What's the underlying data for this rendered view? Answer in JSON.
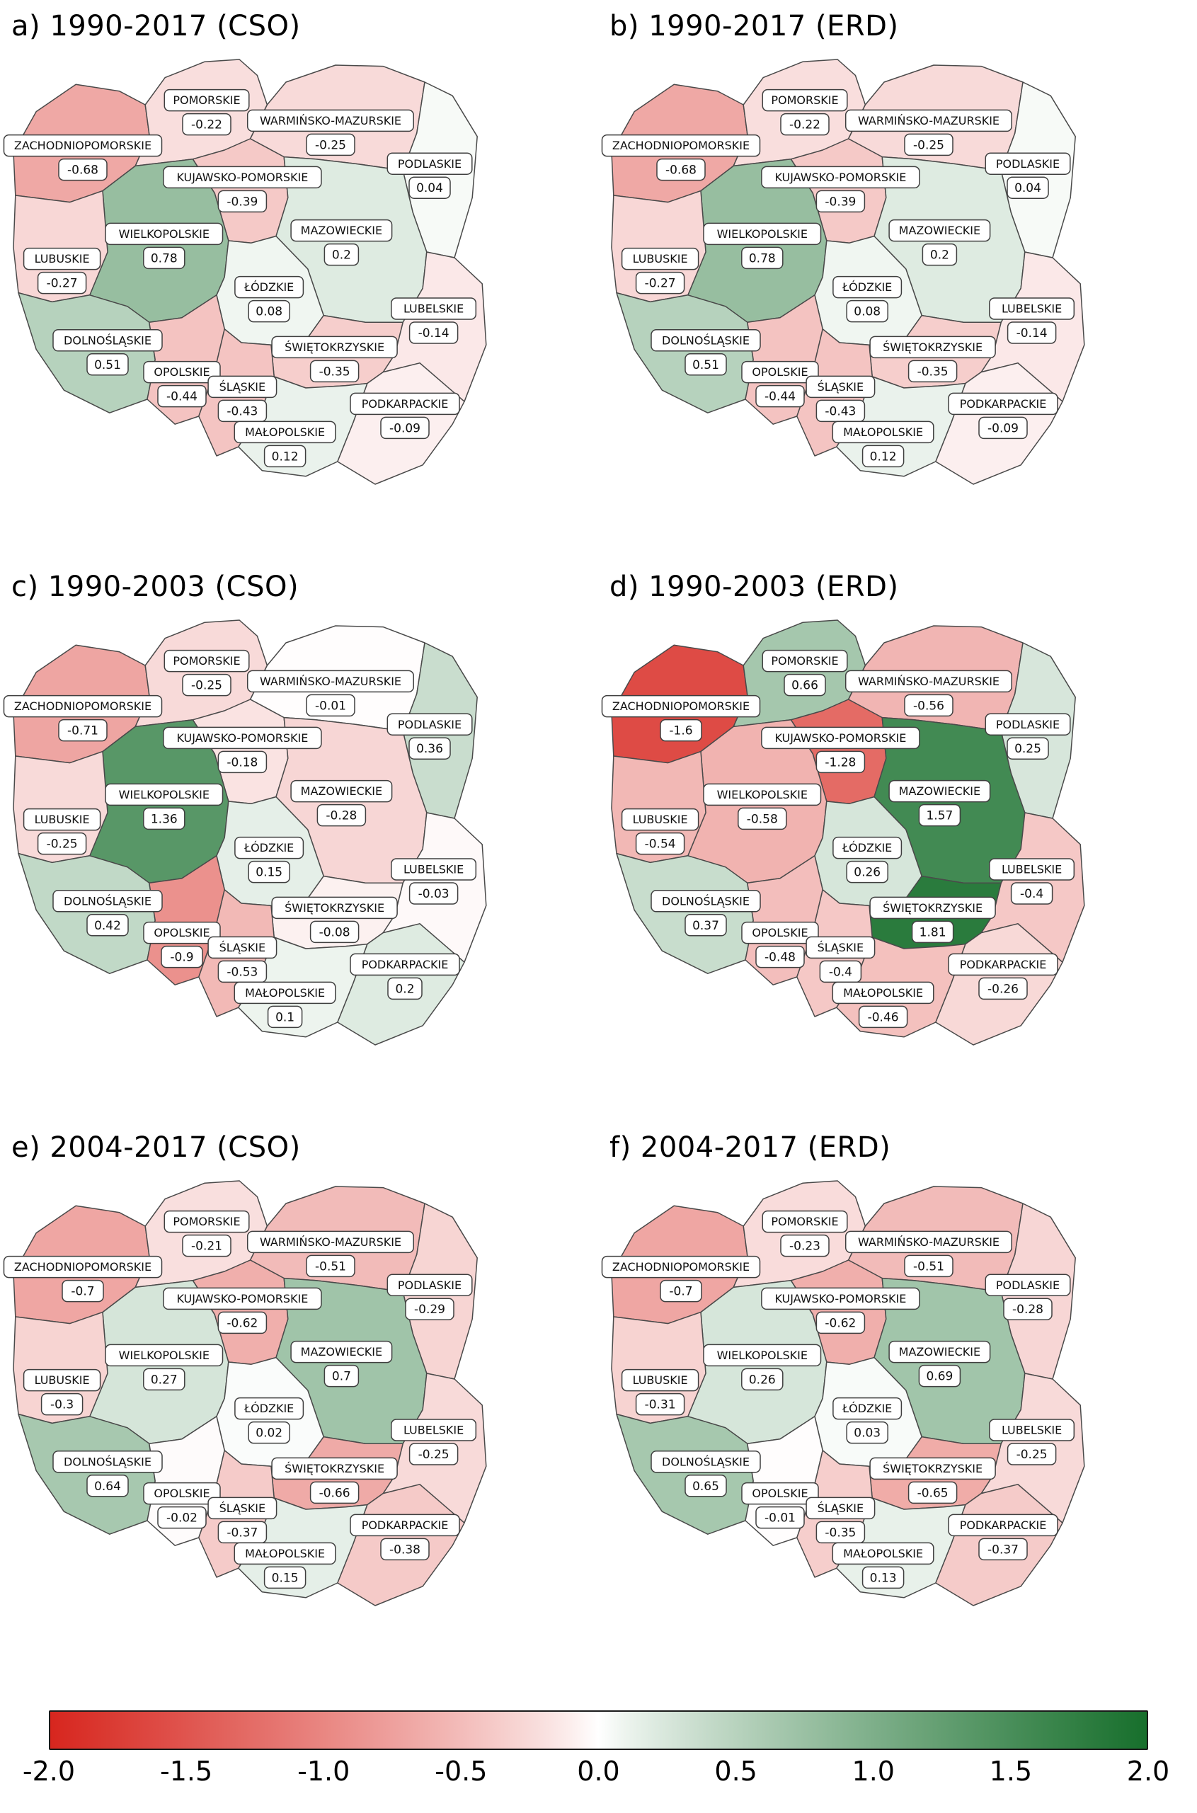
{
  "chart_data": {
    "type": "heatmap",
    "subtype": "choropleth-map",
    "region_set": "Poland voivodeships",
    "legend_position": "bottom",
    "regions": [
      "ZACHODNIOPOMORSKIE",
      "POMORSKIE",
      "WARMIŃSKO-MAZURSKIE",
      "PODLASKIE",
      "KUJAWSKO-POMORSKIE",
      "WIELKOPOLSKIE",
      "MAZOWIECKIE",
      "LUBUSKIE",
      "ŁÓDZKIE",
      "LUBELSKIE",
      "DOLNOŚLĄSKIE",
      "OPOLSKIE",
      "ŚWIĘTOKRZYSKIE",
      "ŚLĄSKIE",
      "PODKARPACKIE",
      "MAŁOPOLSKIE"
    ],
    "panels": [
      {
        "id": "a",
        "label": "a) 1990-2017 (CSO)",
        "values": {
          "ZACHODNIOPOMORSKIE": -0.68,
          "POMORSKIE": -0.22,
          "WARMIŃSKO-MAZURSKIE": -0.25,
          "PODLASKIE": 0.04,
          "KUJAWSKO-POMORSKIE": -0.39,
          "WIELKOPOLSKIE": 0.78,
          "MAZOWIECKIE": 0.2,
          "LUBUSKIE": -0.27,
          "ŁÓDZKIE": 0.08,
          "LUBELSKIE": -0.14,
          "DOLNOŚLĄSKIE": 0.51,
          "OPOLSKIE": -0.44,
          "ŚWIĘTOKRZYSKIE": -0.35,
          "ŚLĄSKIE": -0.43,
          "PODKARPACKIE": -0.09,
          "MAŁOPOLSKIE": 0.12
        }
      },
      {
        "id": "b",
        "label": "b) 1990-2017 (ERD)",
        "values": {
          "ZACHODNIOPOMORSKIE": -0.68,
          "POMORSKIE": -0.22,
          "WARMIŃSKO-MAZURSKIE": -0.25,
          "PODLASKIE": 0.04,
          "KUJAWSKO-POMORSKIE": -0.39,
          "WIELKOPOLSKIE": 0.78,
          "MAZOWIECKIE": 0.2,
          "LUBUSKIE": -0.27,
          "ŁÓDZKIE": 0.08,
          "LUBELSKIE": -0.14,
          "DOLNOŚLĄSKIE": 0.51,
          "OPOLSKIE": -0.44,
          "ŚWIĘTOKRZYSKIE": -0.35,
          "ŚLĄSKIE": -0.43,
          "PODKARPACKIE": -0.09,
          "MAŁOPOLSKIE": 0.12
        }
      },
      {
        "id": "c",
        "label": "c) 1990-2003 (CSO)",
        "values": {
          "ZACHODNIOPOMORSKIE": -0.71,
          "POMORSKIE": -0.25,
          "WARMIŃSKO-MAZURSKIE": -0.01,
          "PODLASKIE": 0.36,
          "KUJAWSKO-POMORSKIE": -0.18,
          "WIELKOPOLSKIE": 1.36,
          "MAZOWIECKIE": -0.28,
          "LUBUSKIE": -0.25,
          "ŁÓDZKIE": 0.15,
          "LUBELSKIE": -0.03,
          "DOLNOŚLĄSKIE": 0.42,
          "OPOLSKIE": -0.9,
          "ŚWIĘTOKRZYSKIE": -0.08,
          "ŚLĄSKIE": -0.53,
          "PODKARPACKIE": 0.2,
          "MAŁOPOLSKIE": 0.1
        }
      },
      {
        "id": "d",
        "label": "d) 1990-2003 (ERD)",
        "values": {
          "ZACHODNIOPOMORSKIE": -1.6,
          "POMORSKIE": 0.66,
          "WARMIŃSKO-MAZURSKIE": -0.56,
          "PODLASKIE": 0.25,
          "KUJAWSKO-POMORSKIE": -1.28,
          "WIELKOPOLSKIE": -0.58,
          "MAZOWIECKIE": 1.57,
          "LUBUSKIE": -0.54,
          "ŁÓDZKIE": 0.26,
          "LUBELSKIE": -0.4,
          "DOLNOŚLĄSKIE": 0.37,
          "OPOLSKIE": -0.48,
          "ŚWIĘTOKRZYSKIE": 1.81,
          "ŚLĄSKIE": -0.4,
          "PODKARPACKIE": -0.26,
          "MAŁOPOLSKIE": -0.46
        }
      },
      {
        "id": "e",
        "label": "e) 2004-2017 (CSO)",
        "values": {
          "ZACHODNIOPOMORSKIE": -0.7,
          "POMORSKIE": -0.21,
          "WARMIŃSKO-MAZURSKIE": -0.51,
          "PODLASKIE": -0.29,
          "KUJAWSKO-POMORSKIE": -0.62,
          "WIELKOPOLSKIE": 0.27,
          "MAZOWIECKIE": 0.7,
          "LUBUSKIE": -0.3,
          "ŁÓDZKIE": 0.02,
          "LUBELSKIE": -0.25,
          "DOLNOŚLĄSKIE": 0.64,
          "OPOLSKIE": -0.02,
          "ŚWIĘTOKRZYSKIE": -0.66,
          "ŚLĄSKIE": -0.37,
          "PODKARPACKIE": -0.38,
          "MAŁOPOLSKIE": 0.15
        }
      },
      {
        "id": "f",
        "label": "f) 2004-2017 (ERD)",
        "values": {
          "ZACHODNIOPOMORSKIE": -0.7,
          "POMORSKIE": -0.23,
          "WARMIŃSKO-MAZURSKIE": -0.51,
          "PODLASKIE": -0.28,
          "KUJAWSKO-POMORSKIE": -0.62,
          "WIELKOPOLSKIE": 0.26,
          "MAZOWIECKIE": 0.69,
          "LUBUSKIE": -0.31,
          "ŁÓDZKIE": 0.03,
          "LUBELSKIE": -0.25,
          "DOLNOŚLĄSKIE": 0.65,
          "OPOLSKIE": -0.01,
          "ŚWIĘTOKRZYSKIE": -0.65,
          "ŚLĄSKIE": -0.35,
          "PODKARPACKIE": -0.37,
          "MAŁOPOLSKIE": 0.13
        }
      }
    ],
    "colorbar": {
      "min": -2,
      "max": 2,
      "ticks": [
        "-2.0",
        "-1.5",
        "-1.0",
        "-0.5",
        "0.0",
        "0.5",
        "1.0",
        "1.5",
        "2.0"
      ],
      "negative_color": "#d7261e",
      "zero_color": "#ffffff",
      "positive_color": "#176f2c"
    }
  }
}
